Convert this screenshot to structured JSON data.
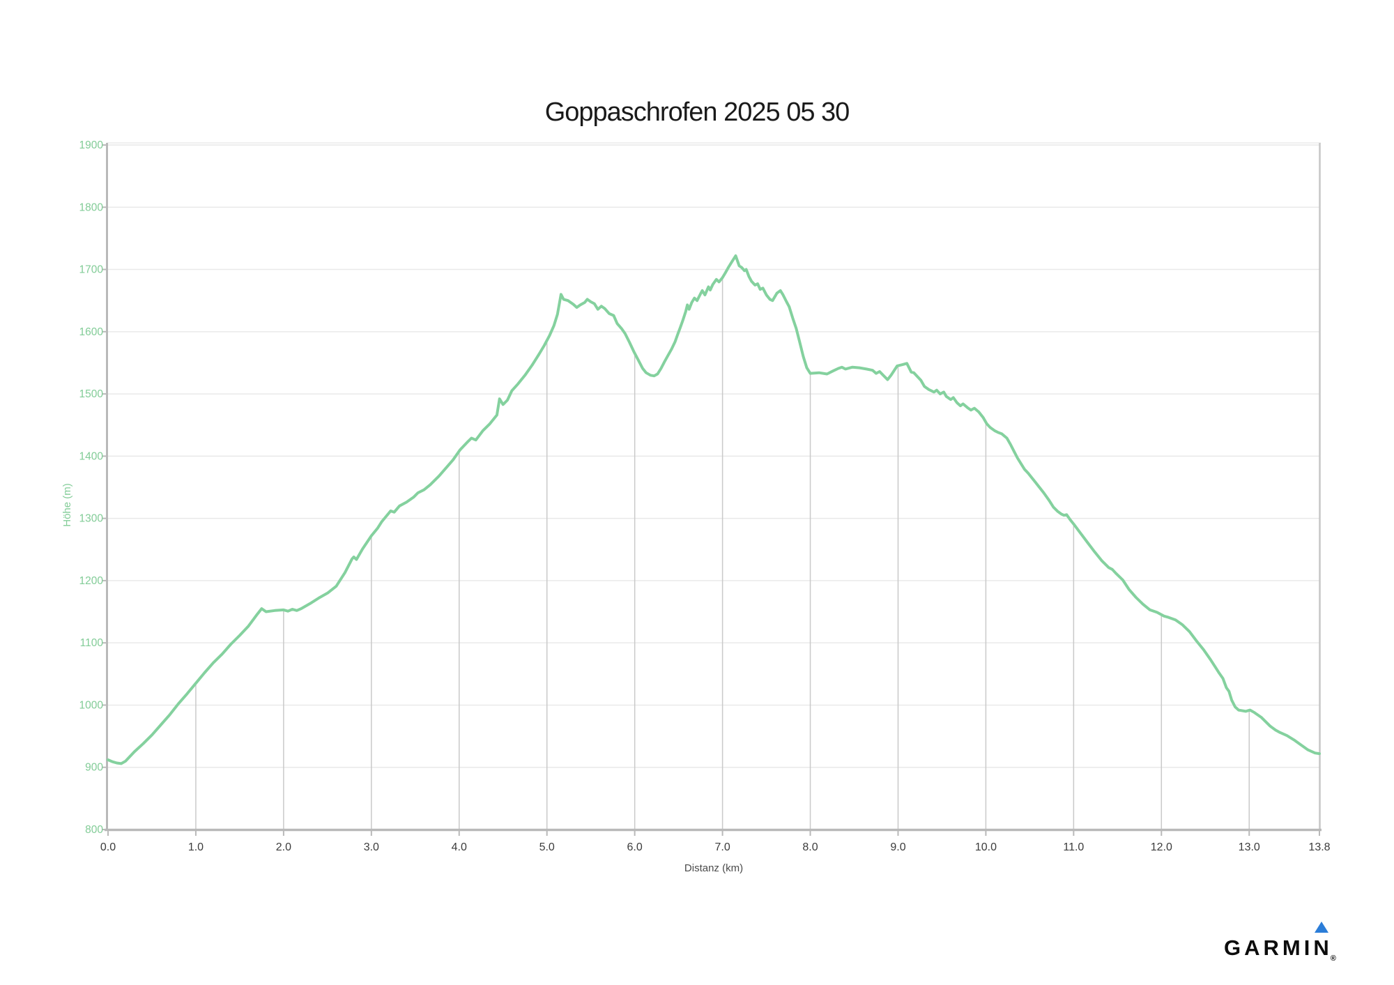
{
  "title": "Goppaschrofen 2025 05 30",
  "colors": {
    "line_green": "#84d19e",
    "axis_label_green": "#82cc97",
    "x_label_dark": "#3b3b3b",
    "axis_title_gray": "#4a4a4a",
    "grid_horizontal": "#e9e9e9",
    "grid_vertical": "#c9c9c9",
    "axis_line": "#b9b9b9",
    "garmin_blue": "#2b7dd8"
  },
  "logo": {
    "text": "GARMIN",
    "registered": "®"
  },
  "chart_data": {
    "type": "line",
    "title": "Goppaschrofen 2025 05 30",
    "xlabel": "Distanz (km)",
    "ylabel": "Höhe (m)",
    "xlim": [
      0,
      13.8
    ],
    "ylim": [
      800,
      1900
    ],
    "grid": "horizontal lines full width; vertical lines only below curve",
    "legend": "none",
    "x_ticks": [
      {
        "v": 0,
        "label": "0.0"
      },
      {
        "v": 1,
        "label": "1.0"
      },
      {
        "v": 2,
        "label": "2.0"
      },
      {
        "v": 3,
        "label": "3.0"
      },
      {
        "v": 4,
        "label": "4.0"
      },
      {
        "v": 5,
        "label": "5.0"
      },
      {
        "v": 6,
        "label": "6.0"
      },
      {
        "v": 7,
        "label": "7.0"
      },
      {
        "v": 8,
        "label": "8.0"
      },
      {
        "v": 9,
        "label": "9.0"
      },
      {
        "v": 10,
        "label": "10.0"
      },
      {
        "v": 11,
        "label": "11.0"
      },
      {
        "v": 12,
        "label": "12.0"
      },
      {
        "v": 13,
        "label": "13.0"
      },
      {
        "v": 13.8,
        "label": "13.8"
      }
    ],
    "y_ticks": [
      800,
      900,
      1000,
      1100,
      1200,
      1300,
      1400,
      1500,
      1600,
      1700,
      1800,
      1900
    ],
    "series": [
      {
        "name": "Höhe",
        "color": "#84d19e",
        "points": [
          [
            0,
            912
          ],
          [
            0.05,
            909
          ],
          [
            0.1,
            907
          ],
          [
            0.15,
            906
          ],
          [
            0.2,
            910
          ],
          [
            0.3,
            925
          ],
          [
            0.4,
            938
          ],
          [
            0.5,
            952
          ],
          [
            0.6,
            968
          ],
          [
            0.7,
            984
          ],
          [
            0.8,
            1002
          ],
          [
            0.9,
            1018
          ],
          [
            1.0,
            1035
          ],
          [
            1.1,
            1052
          ],
          [
            1.2,
            1068
          ],
          [
            1.3,
            1082
          ],
          [
            1.4,
            1098
          ],
          [
            1.5,
            1112
          ],
          [
            1.6,
            1127
          ],
          [
            1.7,
            1146
          ],
          [
            1.75,
            1155
          ],
          [
            1.8,
            1150
          ],
          [
            1.9,
            1152
          ],
          [
            2.0,
            1153
          ],
          [
            2.05,
            1151
          ],
          [
            2.1,
            1154
          ],
          [
            2.15,
            1152
          ],
          [
            2.2,
            1155
          ],
          [
            2.3,
            1163
          ],
          [
            2.4,
            1172
          ],
          [
            2.5,
            1180
          ],
          [
            2.6,
            1191
          ],
          [
            2.7,
            1213
          ],
          [
            2.78,
            1235
          ],
          [
            2.8,
            1238
          ],
          [
            2.83,
            1234
          ],
          [
            2.9,
            1251
          ],
          [
            3.0,
            1272
          ],
          [
            3.07,
            1284
          ],
          [
            3.12,
            1295
          ],
          [
            3.19,
            1307
          ],
          [
            3.22,
            1312
          ],
          [
            3.26,
            1310
          ],
          [
            3.32,
            1320
          ],
          [
            3.4,
            1326
          ],
          [
            3.48,
            1334
          ],
          [
            3.53,
            1341
          ],
          [
            3.6,
            1346
          ],
          [
            3.67,
            1354
          ],
          [
            3.77,
            1368
          ],
          [
            3.85,
            1381
          ],
          [
            3.93,
            1394
          ],
          [
            4.01,
            1410
          ],
          [
            4.09,
            1422
          ],
          [
            4.14,
            1429
          ],
          [
            4.19,
            1426
          ],
          [
            4.27,
            1441
          ],
          [
            4.35,
            1452
          ],
          [
            4.43,
            1466
          ],
          [
            4.46,
            1492
          ],
          [
            4.5,
            1483
          ],
          [
            4.55,
            1490
          ],
          [
            4.6,
            1505
          ],
          [
            4.67,
            1516
          ],
          [
            4.75,
            1530
          ],
          [
            4.83,
            1546
          ],
          [
            4.91,
            1564
          ],
          [
            4.97,
            1578
          ],
          [
            5.03,
            1594
          ],
          [
            5.08,
            1610
          ],
          [
            5.12,
            1628
          ],
          [
            5.16,
            1660
          ],
          [
            5.19,
            1652
          ],
          [
            5.24,
            1650
          ],
          [
            5.3,
            1644
          ],
          [
            5.34,
            1639
          ],
          [
            5.38,
            1643
          ],
          [
            5.43,
            1647
          ],
          [
            5.46,
            1652
          ],
          [
            5.5,
            1648
          ],
          [
            5.54,
            1645
          ],
          [
            5.58,
            1636
          ],
          [
            5.62,
            1641
          ],
          [
            5.66,
            1637
          ],
          [
            5.71,
            1629
          ],
          [
            5.76,
            1626
          ],
          [
            5.8,
            1613
          ],
          [
            5.85,
            1605
          ],
          [
            5.89,
            1597
          ],
          [
            5.94,
            1583
          ],
          [
            5.99,
            1568
          ],
          [
            6.05,
            1552
          ],
          [
            6.09,
            1541
          ],
          [
            6.13,
            1534
          ],
          [
            6.18,
            1530
          ],
          [
            6.22,
            1529
          ],
          [
            6.26,
            1532
          ],
          [
            6.3,
            1541
          ],
          [
            6.34,
            1552
          ],
          [
            6.38,
            1562
          ],
          [
            6.42,
            1572
          ],
          [
            6.46,
            1584
          ],
          [
            6.49,
            1596
          ],
          [
            6.52,
            1607
          ],
          [
            6.55,
            1619
          ],
          [
            6.58,
            1632
          ],
          [
            6.6,
            1643
          ],
          [
            6.62,
            1636
          ],
          [
            6.65,
            1647
          ],
          [
            6.68,
            1654
          ],
          [
            6.71,
            1650
          ],
          [
            6.75,
            1661
          ],
          [
            6.77,
            1666
          ],
          [
            6.8,
            1659
          ],
          [
            6.84,
            1672
          ],
          [
            6.86,
            1667
          ],
          [
            6.89,
            1676
          ],
          [
            6.93,
            1684
          ],
          [
            6.96,
            1680
          ],
          [
            7.0,
            1687
          ],
          [
            7.03,
            1694
          ],
          [
            7.07,
            1704
          ],
          [
            7.11,
            1713
          ],
          [
            7.15,
            1722
          ],
          [
            7.19,
            1706
          ],
          [
            7.22,
            1703
          ],
          [
            7.25,
            1698
          ],
          [
            7.27,
            1700
          ],
          [
            7.3,
            1689
          ],
          [
            7.33,
            1681
          ],
          [
            7.37,
            1675
          ],
          [
            7.4,
            1677
          ],
          [
            7.43,
            1668
          ],
          [
            7.46,
            1670
          ],
          [
            7.5,
            1659
          ],
          [
            7.54,
            1652
          ],
          [
            7.57,
            1650
          ],
          [
            7.62,
            1662
          ],
          [
            7.66,
            1666
          ],
          [
            7.69,
            1659
          ],
          [
            7.73,
            1648
          ],
          [
            7.76,
            1640
          ],
          [
            7.8,
            1622
          ],
          [
            7.84,
            1605
          ],
          [
            7.88,
            1583
          ],
          [
            7.92,
            1560
          ],
          [
            7.96,
            1542
          ],
          [
            8.0,
            1533
          ],
          [
            8.1,
            1534
          ],
          [
            8.19,
            1532
          ],
          [
            8.26,
            1537
          ],
          [
            8.32,
            1541
          ],
          [
            8.36,
            1543
          ],
          [
            8.4,
            1540
          ],
          [
            8.48,
            1543
          ],
          [
            8.56,
            1542
          ],
          [
            8.64,
            1540
          ],
          [
            8.71,
            1538
          ],
          [
            8.75,
            1533
          ],
          [
            8.79,
            1536
          ],
          [
            8.83,
            1530
          ],
          [
            8.88,
            1523
          ],
          [
            8.92,
            1530
          ],
          [
            8.99,
            1545
          ],
          [
            9.05,
            1547
          ],
          [
            9.1,
            1549
          ],
          [
            9.15,
            1535
          ],
          [
            9.18,
            1534
          ],
          [
            9.26,
            1522
          ],
          [
            9.3,
            1512
          ],
          [
            9.35,
            1507
          ],
          [
            9.41,
            1503
          ],
          [
            9.44,
            1506
          ],
          [
            9.48,
            1500
          ],
          [
            9.52,
            1503
          ],
          [
            9.55,
            1496
          ],
          [
            9.6,
            1491
          ],
          [
            9.63,
            1494
          ],
          [
            9.67,
            1486
          ],
          [
            9.71,
            1481
          ],
          [
            9.74,
            1484
          ],
          [
            9.79,
            1478
          ],
          [
            9.83,
            1474
          ],
          [
            9.87,
            1477
          ],
          [
            9.92,
            1471
          ],
          [
            9.97,
            1462
          ],
          [
            10.01,
            1452
          ],
          [
            10.05,
            1446
          ],
          [
            10.1,
            1441
          ],
          [
            10.14,
            1438
          ],
          [
            10.18,
            1436
          ],
          [
            10.24,
            1429
          ],
          [
            10.28,
            1419
          ],
          [
            10.32,
            1408
          ],
          [
            10.36,
            1397
          ],
          [
            10.4,
            1388
          ],
          [
            10.44,
            1379
          ],
          [
            10.48,
            1373
          ],
          [
            10.52,
            1366
          ],
          [
            10.56,
            1359
          ],
          [
            10.61,
            1350
          ],
          [
            10.66,
            1341
          ],
          [
            10.72,
            1329
          ],
          [
            10.77,
            1318
          ],
          [
            10.82,
            1311
          ],
          [
            10.86,
            1307
          ],
          [
            10.89,
            1305
          ],
          [
            10.92,
            1306
          ],
          [
            10.96,
            1298
          ],
          [
            11.0,
            1291
          ],
          [
            11.08,
            1276
          ],
          [
            11.16,
            1261
          ],
          [
            11.24,
            1246
          ],
          [
            11.32,
            1232
          ],
          [
            11.4,
            1221
          ],
          [
            11.44,
            1218
          ],
          [
            11.48,
            1212
          ],
          [
            11.56,
            1201
          ],
          [
            11.63,
            1186
          ],
          [
            11.71,
            1173
          ],
          [
            11.79,
            1162
          ],
          [
            11.87,
            1153
          ],
          [
            11.95,
            1149
          ],
          [
            12.03,
            1143
          ],
          [
            12.08,
            1141
          ],
          [
            12.16,
            1137
          ],
          [
            12.24,
            1129
          ],
          [
            12.32,
            1118
          ],
          [
            12.4,
            1103
          ],
          [
            12.48,
            1089
          ],
          [
            12.56,
            1073
          ],
          [
            12.61,
            1062
          ],
          [
            12.66,
            1051
          ],
          [
            12.7,
            1043
          ],
          [
            12.74,
            1028
          ],
          [
            12.77,
            1022
          ],
          [
            12.8,
            1008
          ],
          [
            12.84,
            997
          ],
          [
            12.88,
            992
          ],
          [
            12.96,
            990
          ],
          [
            13.01,
            992
          ],
          [
            13.06,
            988
          ],
          [
            13.14,
            980
          ],
          [
            13.19,
            973
          ],
          [
            13.24,
            966
          ],
          [
            13.3,
            960
          ],
          [
            13.35,
            956
          ],
          [
            13.43,
            951
          ],
          [
            13.51,
            944
          ],
          [
            13.59,
            936
          ],
          [
            13.67,
            928
          ],
          [
            13.75,
            923
          ],
          [
            13.8,
            922
          ]
        ]
      }
    ]
  }
}
